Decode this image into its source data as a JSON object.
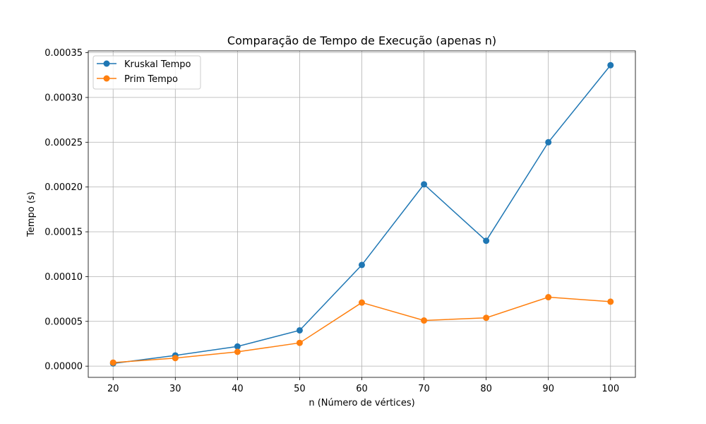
{
  "chart_data": {
    "type": "line",
    "title": "Comparação de Tempo de Execução (apenas n)",
    "xlabel": "n (Número de vértices)",
    "ylabel": "Tempo (s)",
    "x": [
      20,
      30,
      40,
      50,
      60,
      70,
      80,
      90,
      100
    ],
    "xticks": [
      "20",
      "30",
      "40",
      "50",
      "60",
      "70",
      "80",
      "90",
      "100"
    ],
    "yticks": [
      "0.00000",
      "0.00005",
      "0.00010",
      "0.00015",
      "0.00020",
      "0.00025",
      "0.00030",
      "0.00035"
    ],
    "xlim": [
      16,
      104
    ],
    "ylim": [
      -1.25e-05,
      0.000352
    ],
    "grid": true,
    "legend_position": "top-left",
    "series": [
      {
        "name": "Kruskal Tempo",
        "color": "#1f77b4",
        "marker": "circle",
        "values": [
          3e-06,
          1.2e-05,
          2.2e-05,
          4e-05,
          0.000113,
          0.000203,
          0.00014,
          0.00025,
          0.000336
        ]
      },
      {
        "name": "Prim Tempo",
        "color": "#ff7f0e",
        "marker": "circle",
        "values": [
          4e-06,
          9e-06,
          1.6e-05,
          2.6e-05,
          7.1e-05,
          5.1e-05,
          5.4e-05,
          7.7e-05,
          7.2e-05
        ]
      }
    ]
  }
}
